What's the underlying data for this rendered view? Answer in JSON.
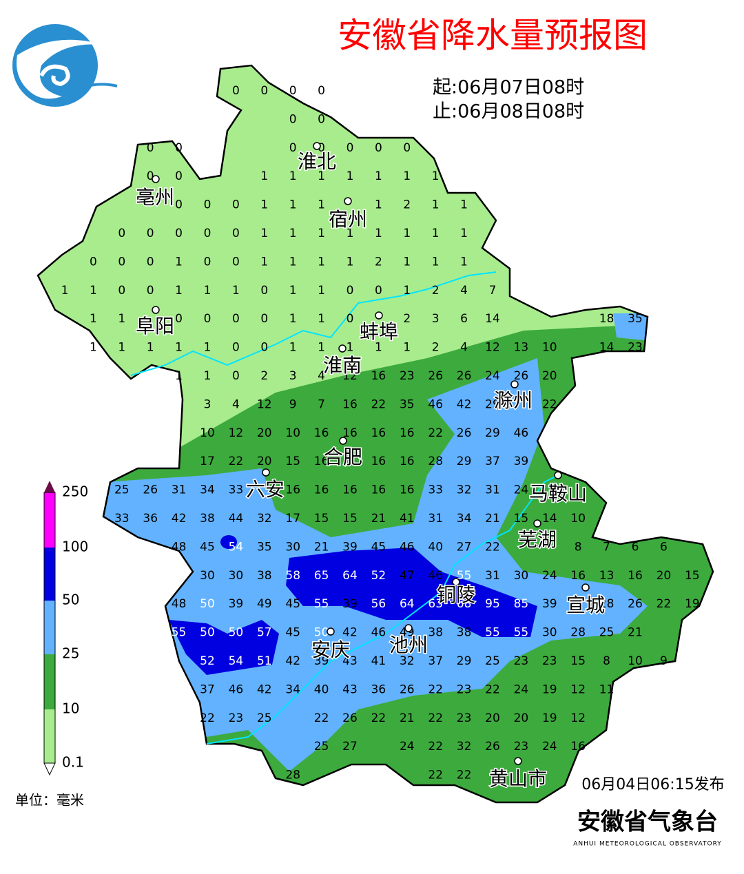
{
  "header": {
    "title": "安徽省降水量预报图",
    "start": "起:06月07日08时",
    "end": "止:06月08日08时"
  },
  "cities": [
    "淮北",
    "亳州",
    "宿州",
    "阜阳",
    "蚌埠",
    "淮南",
    "滁州",
    "合肥",
    "六安",
    "马鞍山",
    "芜湖",
    "宣城",
    "铜陵",
    "安庆",
    "池州",
    "黄山市"
  ],
  "stations": [
    [
      null,
      null,
      null,
      null,
      null,
      null,
      0,
      0,
      0,
      0
    ],
    [
      null,
      null,
      null,
      null,
      null,
      null,
      null,
      null,
      0,
      0
    ],
    [
      null,
      null,
      null,
      0,
      0,
      null,
      null,
      null,
      0,
      0,
      0,
      0,
      0
    ],
    [
      null,
      null,
      null,
      0,
      0,
      null,
      null,
      1,
      1,
      1,
      1,
      1,
      1,
      1
    ],
    [
      null,
      null,
      null,
      null,
      0,
      0,
      0,
      1,
      1,
      1,
      null,
      1,
      2,
      1,
      1
    ],
    [
      null,
      null,
      0,
      0,
      0,
      0,
      0,
      1,
      1,
      1,
      1,
      1,
      1,
      1,
      1
    ],
    [
      null,
      0,
      0,
      0,
      1,
      0,
      0,
      1,
      1,
      1,
      1,
      2,
      1,
      1,
      1
    ],
    [
      1,
      1,
      0,
      0,
      1,
      1,
      1,
      0,
      1,
      1,
      0,
      0,
      1,
      2,
      4,
      7
    ],
    [
      null,
      1,
      1,
      null,
      0,
      0,
      0,
      0,
      1,
      1,
      0,
      null,
      2,
      3,
      6,
      14,
      null,
      null,
      null,
      18,
      35
    ],
    [
      null,
      1,
      1,
      1,
      1,
      1,
      0,
      0,
      1,
      1,
      1,
      1,
      1,
      2,
      4,
      12,
      13,
      10,
      null,
      14,
      23
    ],
    [
      null,
      null,
      null,
      null,
      1,
      1,
      0,
      2,
      3,
      4,
      12,
      16,
      23,
      26,
      26,
      24,
      26,
      20
    ],
    [
      null,
      null,
      null,
      null,
      null,
      3,
      4,
      12,
      9,
      7,
      16,
      22,
      35,
      46,
      42,
      29,
      null,
      22
    ],
    [
      null,
      null,
      null,
      null,
      null,
      10,
      12,
      20,
      10,
      16,
      16,
      16,
      16,
      22,
      26,
      29,
      46
    ],
    [
      null,
      null,
      null,
      null,
      null,
      17,
      22,
      20,
      15,
      16,
      null,
      16,
      16,
      28,
      29,
      37,
      39
    ],
    [
      null,
      null,
      25,
      26,
      31,
      34,
      33,
      null,
      16,
      16,
      16,
      16,
      16,
      33,
      32,
      31,
      24
    ],
    [
      null,
      null,
      33,
      36,
      42,
      38,
      44,
      32,
      17,
      15,
      15,
      21,
      41,
      31,
      34,
      21,
      15,
      14,
      10
    ],
    [
      null,
      null,
      null,
      null,
      48,
      45,
      54,
      35,
      30,
      21,
      39,
      45,
      46,
      40,
      27,
      22,
      null,
      null,
      8,
      7,
      6,
      6
    ],
    [
      null,
      null,
      null,
      null,
      null,
      30,
      30,
      38,
      58,
      65,
      64,
      52,
      47,
      46,
      55,
      31,
      30,
      24,
      16,
      13,
      16,
      20,
      15
    ],
    [
      null,
      null,
      null,
      null,
      48,
      50,
      39,
      49,
      45,
      55,
      39,
      56,
      64,
      63,
      68,
      95,
      85,
      39,
      null,
      28,
      26,
      22,
      19
    ],
    [
      null,
      null,
      null,
      null,
      55,
      50,
      50,
      57,
      45,
      50,
      42,
      46,
      49,
      38,
      38,
      55,
      55,
      30,
      28,
      25,
      21
    ],
    [
      null,
      null,
      null,
      null,
      null,
      52,
      54,
      51,
      42,
      39,
      43,
      41,
      32,
      37,
      29,
      25,
      23,
      23,
      15,
      8,
      10,
      9
    ],
    [
      null,
      null,
      null,
      null,
      null,
      37,
      46,
      42,
      34,
      40,
      43,
      36,
      26,
      22,
      23,
      22,
      24,
      19,
      12,
      11
    ],
    [
      null,
      null,
      null,
      null,
      null,
      22,
      23,
      25,
      null,
      22,
      26,
      22,
      21,
      22,
      23,
      20,
      20,
      19,
      12
    ],
    [
      null,
      null,
      null,
      null,
      null,
      null,
      null,
      null,
      null,
      25,
      27,
      null,
      24,
      22,
      32,
      26,
      23,
      24,
      16
    ],
    [
      null,
      null,
      null,
      null,
      null,
      null,
      null,
      null,
      28,
      null,
      null,
      null,
      null,
      22,
      22
    ]
  ],
  "legend": {
    "ticks": [
      "250",
      "100",
      "50",
      "25",
      "10",
      "0.1"
    ],
    "unit": "单位：毫米"
  },
  "footer": {
    "issued": "06月04日06:15发布",
    "org": "安徽省气象台",
    "org_en": "ANHUI METEOROLOGICAL OBSERVATORY"
  }
}
